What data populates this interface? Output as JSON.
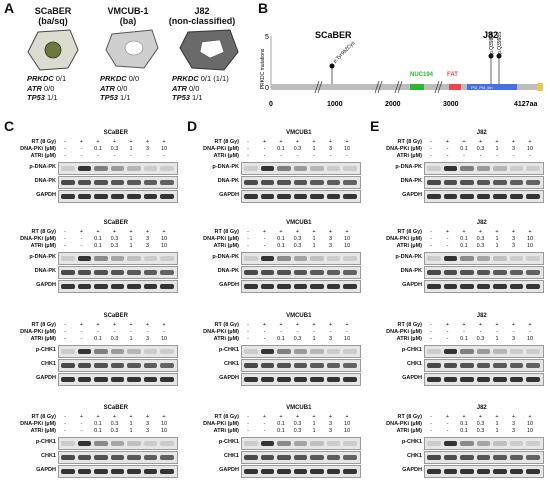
{
  "panels": {
    "A": "A",
    "B": "B",
    "C": "C",
    "D": "D",
    "E": "E"
  },
  "cell_lines": [
    {
      "title": "SCaBER",
      "subtitle": "(ba/sq)",
      "genes": [
        {
          "gene": "PRKDC",
          "value": "0/1"
        },
        {
          "gene": "ATR",
          "value": "0/0"
        },
        {
          "gene": "TP53",
          "value": "1/1"
        }
      ]
    },
    {
      "title": "VMCUB-1",
      "subtitle": "(ba)",
      "genes": [
        {
          "gene": "PRKDC",
          "value": "0/0"
        },
        {
          "gene": "ATR",
          "value": "0/0"
        },
        {
          "gene": "TP53",
          "value": "1/1"
        }
      ]
    },
    {
      "title": "J82",
      "subtitle": "(non-classified)",
      "genes": [
        {
          "gene": "PRKDC",
          "value": "0/1 (1/1)"
        },
        {
          "gene": "ATR",
          "value": "0/0"
        },
        {
          "gene": "TP53",
          "value": "1/1"
        }
      ]
    }
  ],
  "mutation_plot": {
    "ylabel": "PRKDC mutations",
    "yticks": [
      "5",
      "0"
    ],
    "xticks": [
      "0",
      "1000",
      "2000",
      "3000",
      "4127aa"
    ],
    "left_title": "SCaBER",
    "right_title": "J82",
    "mutation_labels": [
      "p.Tyr962Cys",
      "p.Q3981K",
      "p.Q3998S"
    ],
    "domains": [
      "NUC194",
      "FAT",
      "PI3_PI4_kin"
    ],
    "colors": {
      "nuc": "#2fb52f",
      "fat": "#e84a4a",
      "kinase": "#4a6ee8",
      "fatc": "#e8c84a",
      "track": "#bdbdbd"
    }
  },
  "row_labels": {
    "rt": "RT (8 Gy)",
    "dnapki": "DNA-PKi (µM)",
    "atri": "ATRi (µM)"
  },
  "columns": {
    "all": [
      {
        "values": [
          "-",
          "+",
          "+",
          "+",
          "+",
          "+",
          "+"
        ],
        "dose_dnapk": [
          "-",
          "-",
          "0.1",
          "0.3",
          "1",
          "3",
          "10"
        ],
        "dose_atr": [
          "-",
          "-",
          "-",
          "-",
          "-",
          "-",
          "-"
        ]
      },
      {
        "values": [
          "-",
          "+",
          "+",
          "+",
          "+",
          "+",
          "+"
        ],
        "dose_dnapk": [
          "-",
          "-",
          "0.1",
          "0.3",
          "1",
          "3",
          "10"
        ],
        "dose_atr": [
          "-",
          "-",
          "0.1",
          "0.3",
          "1",
          "3",
          "10"
        ]
      },
      {
        "values": [
          "-",
          "+",
          "+",
          "+",
          "+",
          "+",
          "+"
        ],
        "dose_dnapk": [
          "-",
          "-",
          "-",
          "-",
          "-",
          "-",
          "-"
        ],
        "dose_atr": [
          "-",
          "-",
          "0.1",
          "0.3",
          "1",
          "3",
          "10"
        ]
      },
      {
        "values": [
          "-",
          "+",
          "+",
          "+",
          "+",
          "+",
          "+"
        ],
        "dose_dnapk": [
          "-",
          "-",
          "0.1",
          "0.3",
          "1",
          "3",
          "10"
        ],
        "dose_atr": [
          "-",
          "-",
          "0.1",
          "0.3",
          "1",
          "3",
          "10"
        ]
      }
    ]
  },
  "column_panels": [
    {
      "letter": "C",
      "cell": "SCaBER"
    },
    {
      "letter": "D",
      "cell": "VMCUB1"
    },
    {
      "letter": "E",
      "cell": "J82"
    }
  ],
  "blocks": [
    {
      "bands": [
        "p-DNA-PK",
        "DNA-PK",
        "GAPDH"
      ]
    },
    {
      "bands": [
        "p-DNA-PK",
        "DNA-PK",
        "GAPDH"
      ]
    },
    {
      "bands": [
        "p-CHK1",
        "CHK1",
        "GAPDH"
      ]
    },
    {
      "bands": [
        "p-CHK1",
        "CHK1",
        "GAPDH"
      ]
    }
  ]
}
